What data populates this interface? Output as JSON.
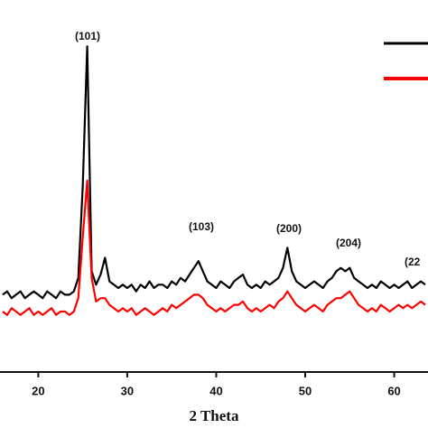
{
  "chart_data": {
    "type": "line",
    "x": [
      16,
      16.5,
      17,
      17.5,
      18,
      18.5,
      19,
      19.5,
      20,
      20.5,
      21,
      21.5,
      22,
      22.5,
      23,
      23.5,
      24,
      24.5,
      25,
      25.5,
      26,
      26.5,
      27,
      27.5,
      28,
      28.5,
      29,
      29.5,
      30,
      30.5,
      31,
      31.5,
      32,
      32.5,
      33,
      33.5,
      34,
      34.5,
      35,
      35.5,
      36,
      36.5,
      37,
      37.5,
      38,
      38.5,
      39,
      39.5,
      40,
      40.5,
      41,
      41.5,
      42,
      42.5,
      43,
      43.5,
      44,
      44.5,
      45,
      45.5,
      46,
      46.5,
      47,
      47.5,
      48,
      48.5,
      49,
      49.5,
      50,
      50.5,
      51,
      51.5,
      52,
      52.5,
      53,
      53.5,
      54,
      54.5,
      55,
      55.5,
      56,
      56.5,
      57,
      57.5,
      58,
      58.5,
      59,
      59.5,
      60,
      60.5,
      61,
      61.5,
      62,
      62.5,
      63,
      63.5
    ],
    "series": [
      {
        "color": "#000000",
        "values": [
          23,
          24,
          22,
          23,
          24,
          22,
          23,
          24,
          23,
          22,
          24,
          23,
          22,
          24,
          23,
          23,
          24,
          28,
          55,
          97,
          30,
          26,
          29,
          34,
          27,
          26,
          25,
          26,
          25,
          26,
          24,
          26,
          25,
          27,
          25,
          26,
          26,
          25,
          27,
          26,
          28,
          27,
          29,
          31,
          33,
          30,
          27,
          26,
          25,
          27,
          26,
          25,
          27,
          28,
          29,
          26,
          25,
          26,
          25,
          27,
          26,
          27,
          28,
          31,
          37,
          30,
          27,
          26,
          25,
          26,
          27,
          26,
          25,
          27,
          28,
          30,
          31,
          30,
          31,
          28,
          27,
          26,
          25,
          26,
          25,
          27,
          26,
          25,
          26,
          25,
          26,
          27,
          25,
          26,
          27,
          26
        ]
      },
      {
        "color": "#ff0000",
        "values": [
          18,
          17,
          19,
          18,
          17,
          18,
          19,
          17,
          18,
          17,
          18,
          19,
          17,
          18,
          18,
          17,
          18,
          22,
          40,
          57,
          28,
          21,
          22,
          22,
          20,
          19,
          18,
          19,
          18,
          19,
          17,
          18,
          19,
          18,
          17,
          18,
          19,
          18,
          20,
          19,
          20,
          21,
          22,
          23,
          23,
          22,
          20,
          19,
          18,
          19,
          18,
          19,
          20,
          20,
          21,
          19,
          18,
          19,
          18,
          19,
          20,
          19,
          21,
          22,
          24,
          22,
          20,
          19,
          18,
          19,
          20,
          19,
          18,
          20,
          21,
          22,
          22,
          23,
          24,
          22,
          20,
          19,
          18,
          19,
          18,
          20,
          19,
          18,
          19,
          20,
          19,
          20,
          19,
          20,
          21,
          20
        ]
      }
    ],
    "annotations": [
      "(101)",
      "(103)",
      "(200)",
      "(204)",
      "(22"
    ],
    "xlabel": "2 Theta",
    "xlim": [
      15.7,
      63.8
    ],
    "xticks": [
      20,
      30,
      40,
      50,
      60
    ],
    "ylim": [
      0,
      100
    ]
  }
}
